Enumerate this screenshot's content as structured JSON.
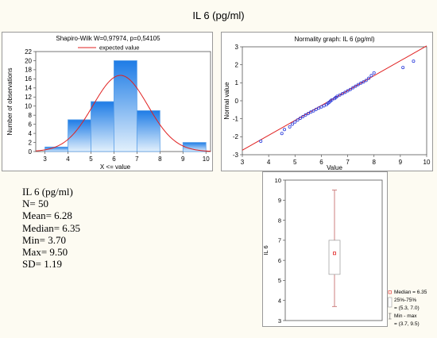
{
  "title": "IL 6 (pg/ml)",
  "colors": {
    "bar_fill_top": "#1e7ce6",
    "bar_fill_bottom": "#e2f0fc",
    "bar_stroke": "#5a9fe8",
    "curve": "#e02020",
    "points": "#2a3bdb",
    "box_line": "#c06060",
    "page_bg": "#fdfbf2"
  },
  "chart_data": [
    {
      "type": "bar",
      "title": "Shapiro-Wilk W=0,97974, p=0,54105",
      "legend": [
        "expected value"
      ],
      "legend_placement": "top",
      "xlabel": "X <= value",
      "ylabel": "Number of observations",
      "bin_edges": [
        3,
        4,
        5,
        6,
        7,
        8,
        9,
        10
      ],
      "values": [
        1,
        7,
        11,
        20,
        9,
        0,
        2
      ],
      "x_ticks": [
        "3",
        "4",
        "5",
        "6",
        "7",
        "8",
        "9",
        "10"
      ],
      "y_ticks": [
        "0",
        "2",
        "4",
        "6",
        "8",
        "10",
        "12",
        "14",
        "16",
        "18",
        "20",
        "22"
      ],
      "xlim": [
        2.6,
        10.2
      ],
      "ylim": [
        0,
        22
      ],
      "expected_curve": {
        "mean": 6.28,
        "sd": 1.19,
        "n": 50
      }
    },
    {
      "type": "scatter",
      "title": "Normality graph: IL 6 (pg/ml)",
      "xlabel": "Value",
      "ylabel": "Normal value",
      "x_ticks": [
        "3",
        "4",
        "5",
        "6",
        "7",
        "8",
        "9",
        "10"
      ],
      "y_ticks": [
        "-3",
        "-2",
        "-1",
        "0",
        "1",
        "2",
        "3"
      ],
      "xlim": [
        3,
        10
      ],
      "ylim": [
        -3,
        3
      ],
      "reference_line": [
        [
          3.0,
          -2.75
        ],
        [
          10.0,
          3.05
        ]
      ],
      "points": [
        [
          3.7,
          -2.25
        ],
        [
          4.5,
          -1.82
        ],
        [
          4.6,
          -1.6
        ],
        [
          4.8,
          -1.45
        ],
        [
          4.9,
          -1.3
        ],
        [
          5.0,
          -1.18
        ],
        [
          5.1,
          -1.07
        ],
        [
          5.2,
          -0.97
        ],
        [
          5.3,
          -0.88
        ],
        [
          5.4,
          -0.79
        ],
        [
          5.5,
          -0.71
        ],
        [
          5.6,
          -0.63
        ],
        [
          5.7,
          -0.56
        ],
        [
          5.8,
          -0.48
        ],
        [
          5.9,
          -0.41
        ],
        [
          6.0,
          -0.34
        ],
        [
          6.1,
          -0.28
        ],
        [
          6.2,
          -0.21
        ],
        [
          6.25,
          -0.14
        ],
        [
          6.3,
          -0.08
        ],
        [
          6.35,
          -0.01
        ],
        [
          6.4,
          0.05
        ],
        [
          6.5,
          0.12
        ],
        [
          6.55,
          0.18
        ],
        [
          6.6,
          0.25
        ],
        [
          6.7,
          0.32
        ],
        [
          6.8,
          0.39
        ],
        [
          6.9,
          0.47
        ],
        [
          7.0,
          0.55
        ],
        [
          7.1,
          0.63
        ],
        [
          7.2,
          0.72
        ],
        [
          7.3,
          0.81
        ],
        [
          7.4,
          0.9
        ],
        [
          7.5,
          0.98
        ],
        [
          7.6,
          1.05
        ],
        [
          7.7,
          1.13
        ],
        [
          7.8,
          1.25
        ],
        [
          7.9,
          1.4
        ],
        [
          8.0,
          1.55
        ],
        [
          9.1,
          1.85
        ],
        [
          9.5,
          2.2
        ]
      ]
    },
    {
      "type": "box",
      "ylabel": "IL 6",
      "y_ticks": [
        "3",
        "4",
        "5",
        "6",
        "7",
        "8",
        "9",
        "10"
      ],
      "ylim": [
        3,
        10
      ],
      "median": 6.35,
      "q1": 5.3,
      "q3": 7.0,
      "min": 3.7,
      "max": 9.5,
      "legend": [
        "Median = 6.35",
        "25%-75%",
        "= (5.3, 7.0)",
        "Min - max",
        "= (3.7, 9.5)"
      ]
    }
  ],
  "stats": {
    "lines": [
      "IL 6 (pg/ml)",
      "N= 50",
      "Mean=  6.28",
      "Median=  6.35",
      "Min=  3.70",
      "Max=  9.50",
      "SD=  1.19"
    ]
  }
}
